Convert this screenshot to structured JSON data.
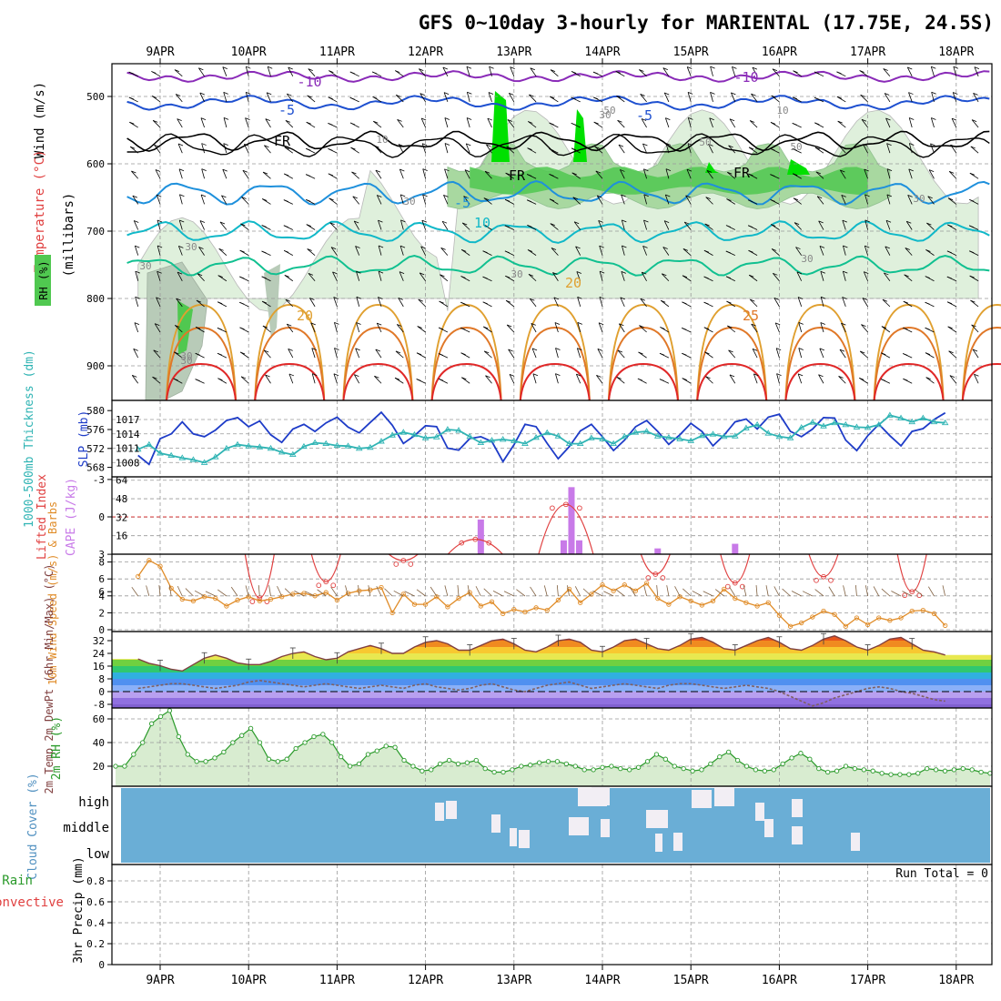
{
  "title": "GFS 0~10day 3-hourly for MARIENTAL (17.75E, 24.5S)",
  "colors": {
    "rh_light": "#dff0dc",
    "rh_mid": "#a8d8a0",
    "rh_dark": "#50c850",
    "rh_max": "#00e000",
    "t_minus10": "#8a2bb8",
    "t_minus5": "#1e50d0",
    "t_fr": "#000000",
    "t_5": "#1e90dc",
    "t_10": "#10b8c8",
    "t_15": "#10c090",
    "t_20": "#e0a030",
    "t_25": "#e07828",
    "t_30": "#e02828",
    "slp": "#1e3cc8",
    "thickness": "#30b4b4",
    "cape": "#c87ae8",
    "li": "#e04040",
    "wind10": "#e08c28",
    "temp2m": "#e06020",
    "dewpt": "#806060",
    "rh2m": "#2a9a2a",
    "cloud_bg": "#6aaed6"
  },
  "chart_data": [
    {
      "id": "sounding",
      "type": "heatmap",
      "title": "GFS 0~10day 3-hourly for MARIENTAL (17.75E, 24.5S)",
      "x_ticks": [
        "9APR",
        "10APR",
        "11APR",
        "12APR",
        "13APR",
        "14APR",
        "15APR",
        "16APR",
        "17APR",
        "18APR"
      ],
      "ylabel_wind": "Wind (m/s)",
      "ylabel_temp": "Temperature (°C)",
      "ylabel_rh": "RH (%)",
      "ylabel_p": "(millibars)",
      "y_ticks": [
        500,
        600,
        700,
        800,
        900
      ],
      "ylim": [
        950,
        450
      ],
      "rh_labels": [
        "30",
        "30",
        "30",
        "30",
        "50",
        "50",
        "50",
        "30",
        "30",
        "30",
        "10",
        "10",
        "30",
        "30"
      ],
      "temp_labels": [
        "-10",
        "-10",
        "-5",
        "-5",
        "FR",
        "FR",
        "FR",
        "-5",
        "10",
        "20",
        "20",
        "25"
      ]
    },
    {
      "id": "slp_thickness",
      "type": "line",
      "ylabel_left": "1000-500mb Thickness (dm)",
      "ylabel_right": "SLP (mb)",
      "thickness_ticks": [
        568,
        572,
        576,
        580
      ],
      "slp_ticks": [
        1008,
        1011,
        1014,
        1017
      ],
      "series": [
        {
          "key": "slp",
          "values": [
            1009.5,
            1007.6,
            1013,
            1014,
            1016.5,
            1014,
            1013.4,
            1014.8,
            1016.8,
            1017.4,
            1015.5,
            1016.7,
            1013.8,
            1012.2,
            1015,
            1016,
            1014.5,
            1016.3,
            1017.5,
            1015.4,
            1014.2,
            1016.4,
            1018.5,
            1015.8,
            1012,
            1013.6,
            1015.7,
            1015.5,
            1011,
            1010.6,
            1013,
            1013.4,
            1012.4,
            1008.2,
            1011.7,
            1016,
            1015.5,
            1012,
            1008.8,
            1011.3,
            1014.6,
            1016,
            1013.4,
            1010.5,
            1012.7,
            1015.5,
            1016.8,
            1014.5,
            1011.8,
            1013.8,
            1016.2,
            1014.5,
            1011.5,
            1013.7,
            1016.5,
            1017.1,
            1015,
            1017.5,
            1018.1,
            1014.5,
            1013.4,
            1015,
            1017.4,
            1017.3,
            1012.7,
            1010.5,
            1013.6,
            1016,
            1013.6,
            1011.5,
            1014.5,
            1015.1,
            1017,
            1018.4
          ]
        },
        {
          "key": "thickness",
          "values": [
            571.8,
            572.8,
            571,
            570.5,
            570,
            569.6,
            569,
            570.2,
            572,
            572.8,
            572.5,
            572.3,
            572,
            571.2,
            570.7,
            572.4,
            573.2,
            573,
            572.6,
            572.5,
            572,
            572.2,
            573.5,
            574.8,
            575.4,
            574.9,
            574.2,
            574.4,
            576,
            575.8,
            574.5,
            573.2,
            573.7,
            573.9,
            573.6,
            573,
            574.3,
            575.3,
            574.6,
            573,
            573,
            574.2,
            574,
            573,
            574.5,
            575.4,
            575.6,
            574.6,
            574.3,
            574,
            573.6,
            574.7,
            575,
            574.5,
            574.6,
            576.3,
            577,
            575.2,
            574.5,
            574.2,
            576.4,
            577.5,
            576.7,
            577.4,
            577,
            576.5,
            576.4,
            577,
            579,
            578.4,
            577.6,
            578.4,
            577.6,
            577.4
          ]
        }
      ]
    },
    {
      "id": "cape_li",
      "type": "bar",
      "ylabel_left": "Lifted Index",
      "ylabel_right": "CAPE (J/kg)",
      "li_ticks": [
        "-3",
        "0",
        "3",
        "6"
      ],
      "cape_ticks": [
        16,
        32,
        48,
        64
      ],
      "cape_bars": [
        {
          "t": 31,
          "v": 30
        },
        {
          "t": 38.5,
          "v": 12
        },
        {
          "t": 39.2,
          "v": 58
        },
        {
          "t": 39.9,
          "v": 12
        },
        {
          "t": 47,
          "v": 5
        },
        {
          "t": 54,
          "v": 9
        }
      ],
      "li_humps": [
        {
          "t": 11,
          "peak": 6.5
        },
        {
          "t": 17,
          "peak": 5.2
        },
        {
          "t": 24,
          "peak": 3.5
        },
        {
          "t": 30.5,
          "peak": 1.8
        },
        {
          "t": 38.7,
          "peak": -1
        },
        {
          "t": 46.8,
          "peak": 4.6
        },
        {
          "t": 54,
          "peak": 5.3
        },
        {
          "t": 62,
          "peak": 4.8
        },
        {
          "t": 70,
          "peak": 6
        }
      ]
    },
    {
      "id": "wind10",
      "type": "line",
      "ylabel": "10m Wind Speed (m/s) & Barbs",
      "y_ticks": [
        0,
        2,
        4,
        6,
        8
      ],
      "values": [
        6.3,
        8.2,
        7.5,
        4.9,
        3.6,
        3.4,
        3.9,
        3.7,
        2.8,
        3.5,
        3.9,
        3.4,
        3.6,
        3.9,
        4.2,
        4.3,
        4.0,
        4.4,
        3.5,
        4.3,
        4.6,
        4.7,
        5.0,
        2.0,
        4.2,
        3.0,
        3.0,
        3.9,
        2.7,
        3.7,
        4.4,
        2.8,
        3.3,
        1.9,
        2.4,
        2.1,
        2.6,
        2.3,
        3.5,
        4.8,
        3.2,
        4.2,
        5.3,
        4.6,
        5.3,
        4.6,
        5.5,
        3.7,
        3.0,
        3.9,
        3.4,
        2.9,
        3.4,
        4.8,
        3.7,
        3.2,
        2.8,
        3.2,
        1.7,
        0.4,
        0.8,
        1.5,
        2.2,
        1.8,
        0.4,
        1.4,
        0.6,
        1.4,
        1.1,
        1.4,
        2.2,
        2.3,
        1.9,
        0.5
      ]
    },
    {
      "id": "temp2m",
      "type": "area",
      "ylabel": "2m Temp 2m DewPt (6hr Min/Max) (°C)",
      "y_ticks": [
        -8,
        0,
        8,
        16,
        24,
        32
      ],
      "temp_values": [
        20.5,
        17.8,
        16.3,
        14,
        13,
        17,
        21,
        23,
        21,
        18,
        17,
        17,
        19,
        22,
        24,
        25,
        22,
        20,
        21,
        25,
        27,
        29,
        27,
        24,
        24,
        28,
        31,
        32,
        30,
        26,
        26,
        29,
        32,
        33,
        30,
        26,
        25,
        28,
        32,
        33,
        31,
        26,
        25,
        28,
        32,
        33,
        30,
        27,
        26,
        29,
        33,
        34,
        31,
        27,
        26,
        29,
        32,
        34,
        31,
        27,
        26,
        29,
        33,
        35,
        32,
        28,
        26,
        29,
        33,
        34,
        30,
        26,
        25,
        23
      ],
      "dewpt_values": [
        2,
        3,
        4,
        5,
        5,
        4,
        3,
        2,
        3,
        4,
        6,
        7,
        6,
        5,
        4,
        3,
        4,
        5,
        4,
        3,
        2,
        3,
        4,
        3,
        2,
        4,
        5,
        3,
        2,
        1,
        2,
        4,
        5,
        3,
        1,
        0,
        2,
        4,
        5,
        6,
        4,
        2,
        3,
        4,
        5,
        4,
        3,
        2,
        4,
        5,
        5,
        4,
        3,
        2,
        3,
        4,
        3,
        2,
        0,
        -3,
        -6,
        -9,
        -7,
        -4,
        -2,
        0,
        2,
        3,
        2,
        0,
        -1,
        -3,
        -5,
        -6
      ]
    },
    {
      "id": "rh2m",
      "type": "area",
      "ylabel": "2m RH (%)",
      "y_ticks": [
        20,
        40,
        60
      ],
      "values": [
        20,
        20,
        30,
        40,
        56,
        62,
        67,
        45,
        30,
        24,
        24,
        27,
        32,
        40,
        46,
        52,
        40,
        26,
        24,
        26,
        35,
        40,
        45,
        47,
        40,
        28,
        20,
        22,
        30,
        33,
        37,
        36,
        25,
        20,
        16,
        17,
        22,
        25,
        22,
        23,
        25,
        18,
        15,
        15,
        17,
        20,
        21,
        23,
        24,
        24,
        22,
        20,
        17,
        17,
        19,
        20,
        18,
        17,
        19,
        24,
        30,
        26,
        20,
        18,
        16,
        17,
        22,
        28,
        32,
        25,
        20,
        17,
        16,
        17,
        22,
        27,
        31,
        26,
        18,
        15,
        16,
        20,
        18,
        17,
        16,
        14,
        13,
        13,
        13,
        14,
        18,
        17,
        16,
        17,
        18,
        17,
        15,
        14
      ]
    },
    {
      "id": "cloud",
      "type": "bar",
      "ylabel": "Cloud Cover (%)",
      "y_ticks": [
        "high",
        "middle",
        "low"
      ]
    },
    {
      "id": "precip",
      "type": "bar",
      "ylabel": "3hr Precip (mm)",
      "legend_total": "Total / Rain",
      "legend_conv": "Convective",
      "run_total": "Run Total = 0",
      "y_ticks": [
        "0",
        "0.2",
        "0.4",
        "0.6",
        "0.8"
      ],
      "x_ticks": [
        "9APR",
        "10APR",
        "11APR",
        "12APR",
        "13APR",
        "14APR",
        "15APR",
        "16APR",
        "17APR",
        "18APR"
      ]
    }
  ]
}
